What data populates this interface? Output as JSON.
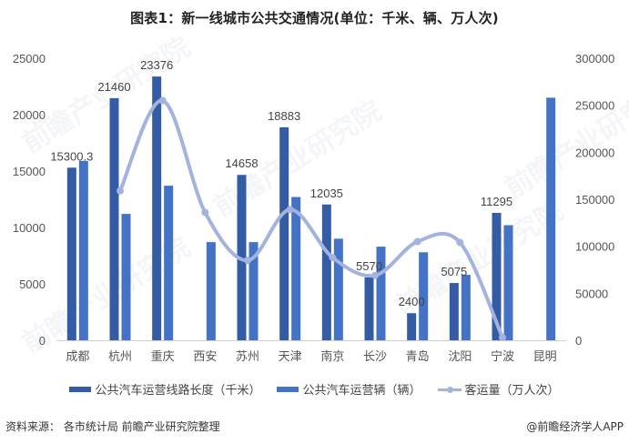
{
  "title": "图表1：新一线城市公共交通情况(单位：千米、辆、万人次)",
  "legend": {
    "items": [
      {
        "label": "公共汽车运营线路长度（千米）",
        "color": "#335ca4",
        "kind": "bar"
      },
      {
        "label": "公共汽车运营辆（辆）",
        "color": "#4472c4",
        "kind": "bar"
      },
      {
        "label": "客运量（万人次）",
        "color": "#a3b3de",
        "kind": "line"
      }
    ]
  },
  "footer": {
    "source": "资料来源： 各市统计局 前瞻产业研究院整理",
    "brand": "@前瞻经济学人APP"
  },
  "watermark": "前瞻产业研究院",
  "chart_data": {
    "type": "bar",
    "title": "图表1：新一线城市公共交通情况(单位：千米、辆、万人次)",
    "categories": [
      "成都",
      "杭州",
      "重庆",
      "西安",
      "苏州",
      "天津",
      "南京",
      "长沙",
      "青岛",
      "沈阳",
      "宁波",
      "昆明"
    ],
    "series": [
      {
        "name": "公共汽车运营线路长度（千米）",
        "type": "bar",
        "axis": "left",
        "color": "#335ca4",
        "values": [
          15300.3,
          21460,
          23376,
          null,
          14658,
          18883,
          12035,
          5570,
          2400,
          5075,
          11295,
          null
        ],
        "labels": [
          "15300.3",
          "21460",
          "23376",
          "",
          "14658",
          "18883",
          "12035",
          "5570",
          "2400",
          "5075",
          "11295",
          ""
        ]
      },
      {
        "name": "公共汽车运营辆（辆）",
        "type": "bar",
        "axis": "left",
        "color": "#4472c4",
        "values": [
          15900,
          11200,
          13700,
          8700,
          8700,
          12700,
          9000,
          8300,
          7800,
          5800,
          10200,
          21500
        ]
      },
      {
        "name": "客运量（万人次）",
        "type": "line",
        "axis": "right",
        "color": "#a3b3de",
        "smooth": true,
        "values": [
          null,
          159000,
          255000,
          136000,
          85000,
          139000,
          88000,
          69000,
          105000,
          104000,
          3000,
          null
        ]
      }
    ],
    "left_axis": {
      "ylim": [
        0,
        25000
      ],
      "ticks": [
        "0",
        "5000",
        "10000",
        "15000",
        "20000",
        "25000"
      ]
    },
    "right_axis": {
      "ylim": [
        0,
        300000
      ],
      "ticks": [
        "0",
        "50000",
        "100000",
        "150000",
        "200000",
        "250000",
        "300000"
      ]
    },
    "xlabel": "",
    "ylabel": "",
    "grid": false,
    "legend_position": "bottom"
  }
}
